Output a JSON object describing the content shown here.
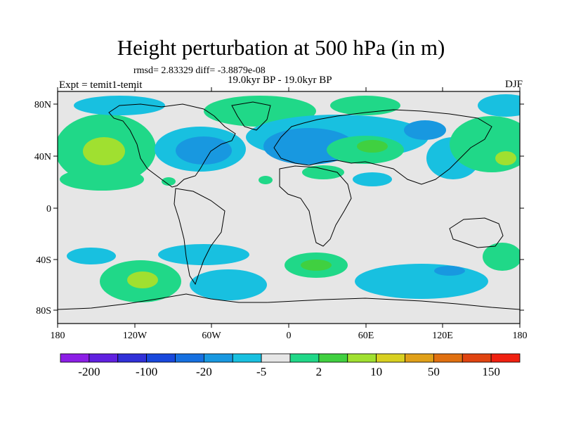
{
  "title": "Height perturbation at 500 hPa (in m)",
  "stats": "rmsd= 2.83329 diff= -3.8879e-08",
  "period": "19.0kyr BP - 19.0kyr BP",
  "experiment": "Expt = temit1-temit",
  "season": "DJF",
  "axes": {
    "x_ticks": [
      "180",
      "120W",
      "60W",
      "0",
      "60E",
      "120E",
      "180"
    ],
    "y_ticks": [
      "80N",
      "40N",
      "0",
      "40S",
      "80S"
    ]
  },
  "colorbar": {
    "colors": [
      "#8c1ee6",
      "#6020e0",
      "#3030d8",
      "#1848dc",
      "#1670e0",
      "#1898e0",
      "#18c0e0",
      "#e6e6e6",
      "#20d888",
      "#40d040",
      "#a0e030",
      "#d8d020",
      "#e0a018",
      "#e07010",
      "#e04410",
      "#f02010"
    ],
    "labels": [
      "-200",
      "-100",
      "-20",
      "-5",
      "2",
      "10",
      "50",
      "150"
    ]
  }
}
